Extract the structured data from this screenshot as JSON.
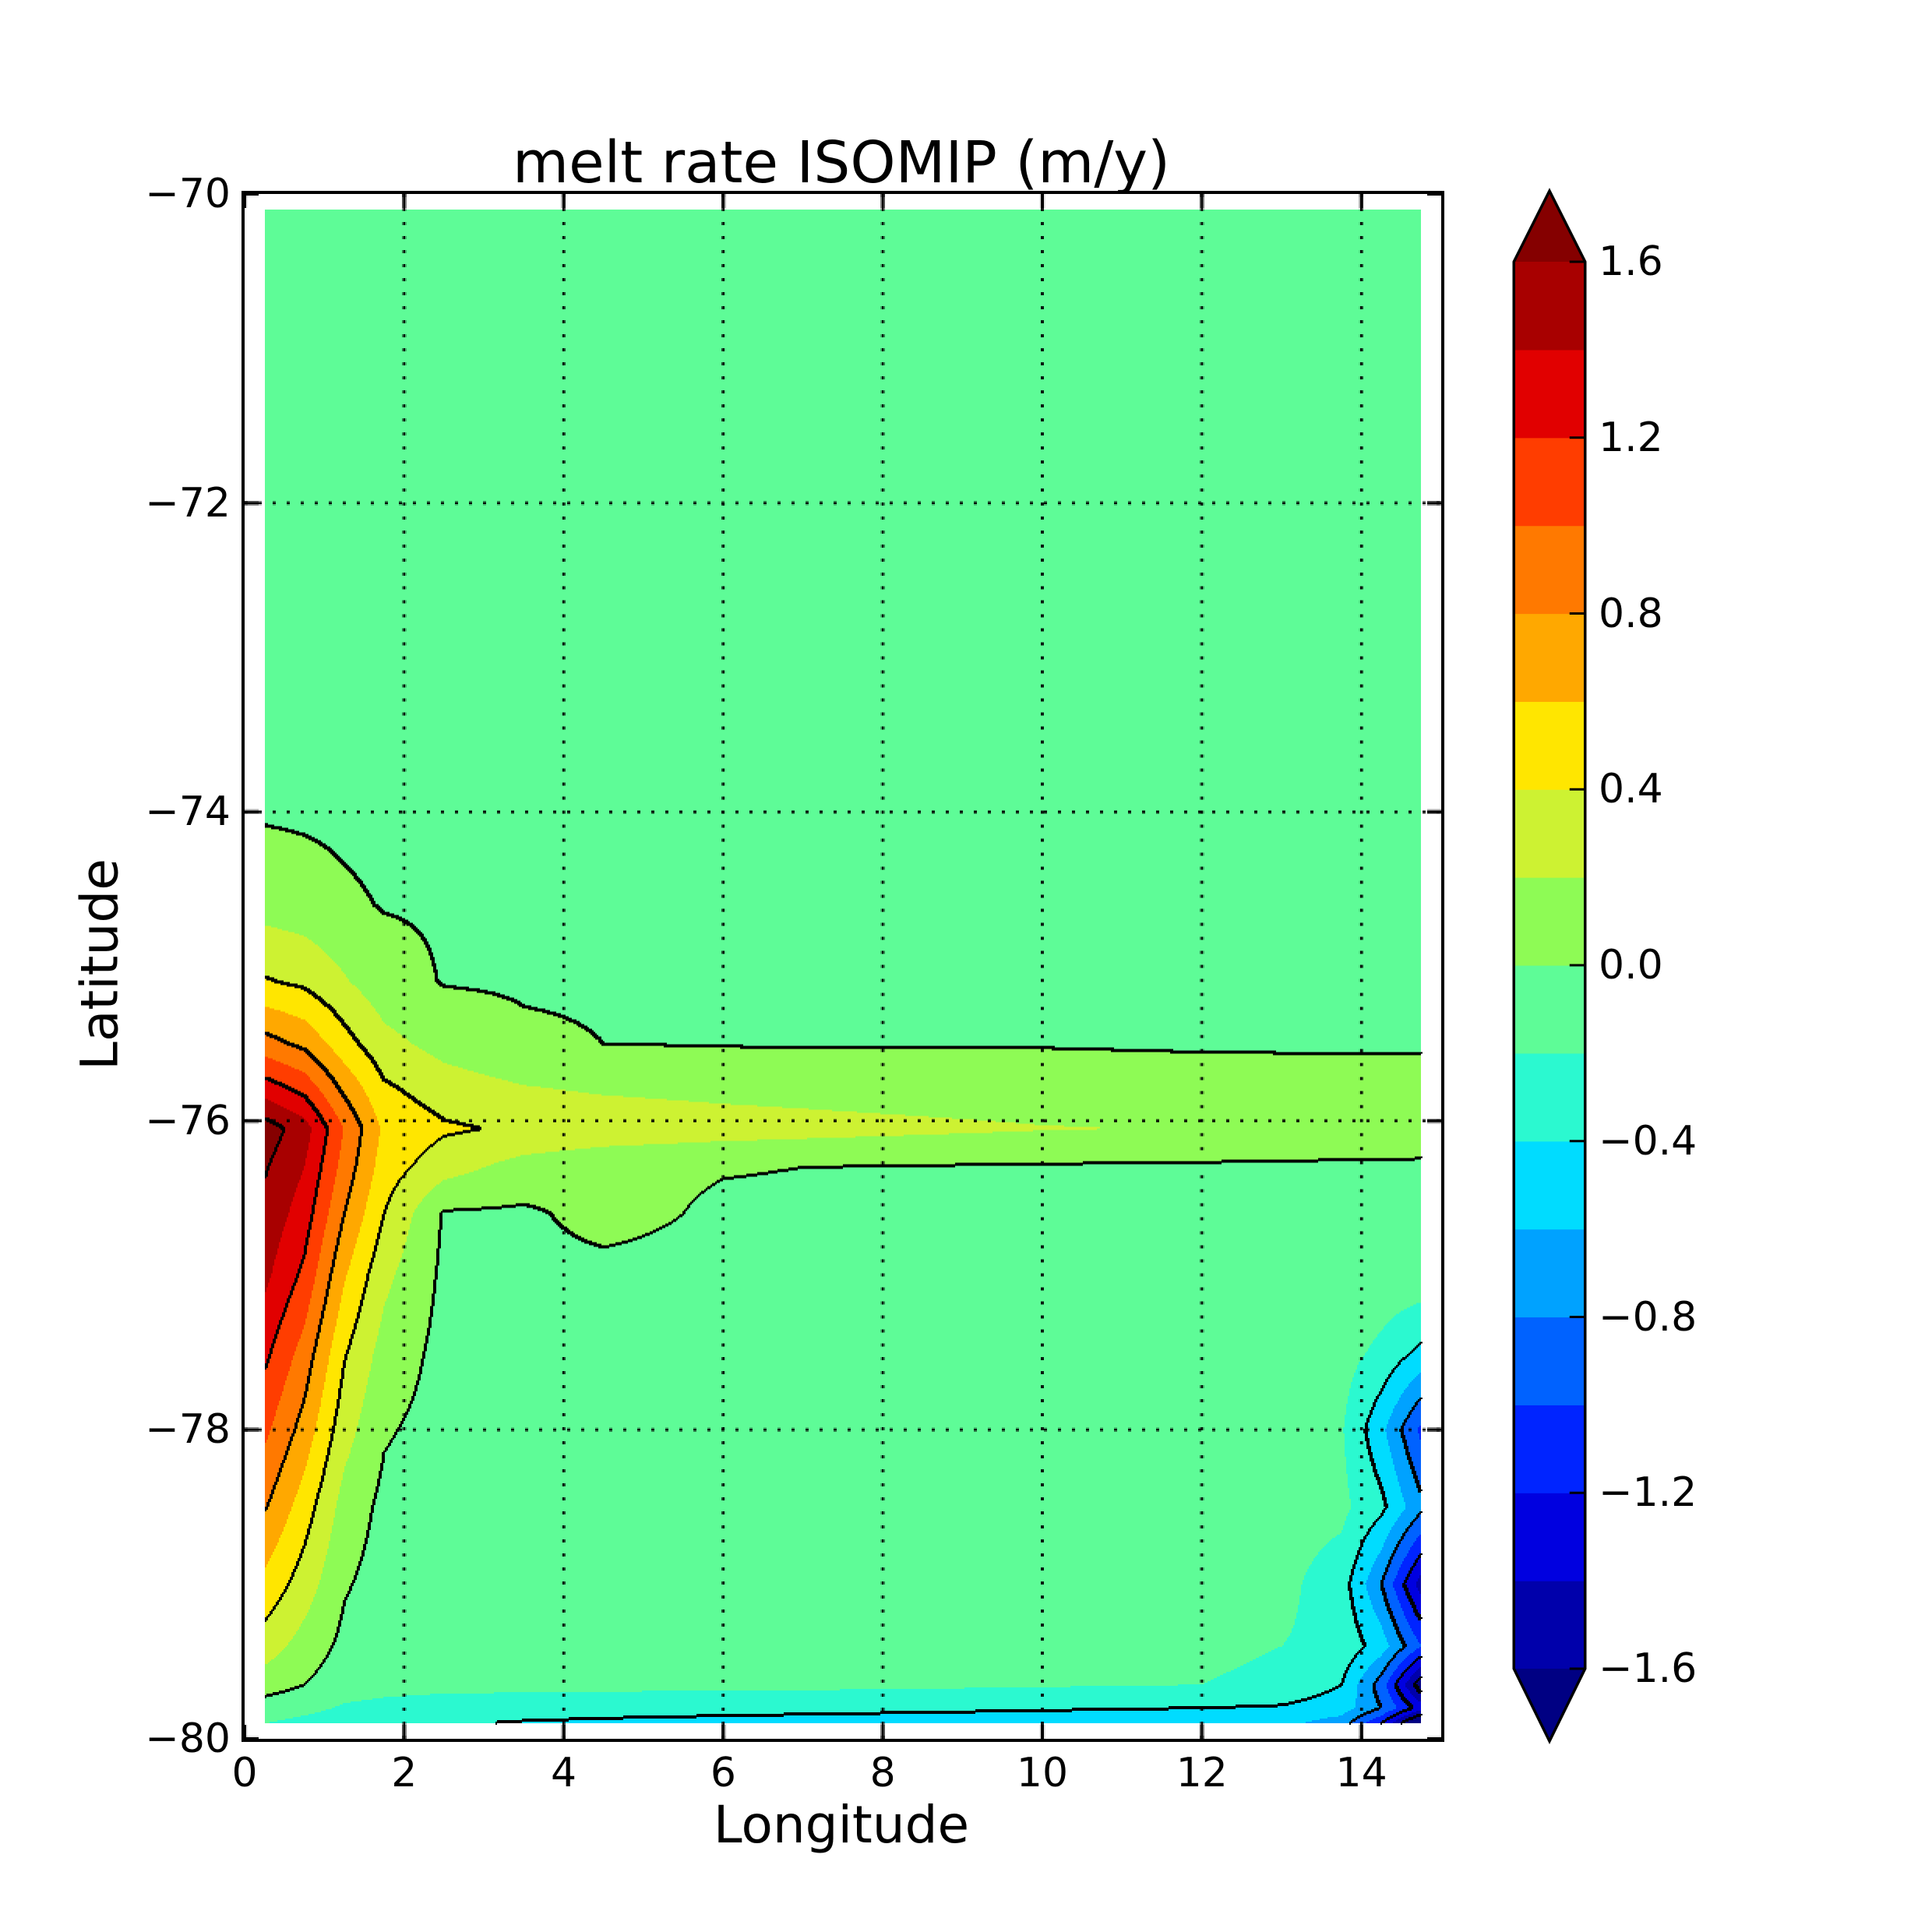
{
  "chart_data": {
    "type": "heatmap",
    "subtype": "filled_contour",
    "title": "melt rate ISOMIP (m/y)",
    "xlabel": "Longitude",
    "ylabel": "Latitude",
    "units": "m/y",
    "xlim": [
      0,
      15
    ],
    "ylim": [
      -80,
      -70
    ],
    "grid": true,
    "x_ticks": [
      0,
      2,
      4,
      6,
      8,
      10,
      12,
      14
    ],
    "x_tick_labels": [
      "0",
      "2",
      "4",
      "6",
      "8",
      "10",
      "12",
      "14"
    ],
    "y_ticks": [
      -70,
      -72,
      -74,
      -76,
      -78,
      -80
    ],
    "y_tick_labels": [
      "−70",
      "−72",
      "−74",
      "−76",
      "−78",
      "−80"
    ],
    "band_levels_min": -1.6,
    "band_levels_max": 1.6,
    "band_step": 0.2,
    "contour_line_levels": [
      -1.6,
      -1.2,
      -0.8,
      -0.4,
      0.0,
      0.4,
      0.8,
      1.2,
      1.6
    ],
    "band_colors": [
      "#0000ab",
      "#0000e0",
      "#0024ff",
      "#0062ff",
      "#00a2ff",
      "#00dcff",
      "#2bf9d0",
      "#5efc97",
      "#8efb55",
      "#cdf232",
      "#ffe600",
      "#ffa800",
      "#ff7900",
      "#ff3d00",
      "#e10000",
      "#a80000"
    ],
    "color_under": "#000083",
    "color_over": "#850000",
    "colorbar": {
      "extend": "both",
      "tick_values": [
        1.6,
        1.2,
        0.8,
        0.4,
        0.0,
        -0.4,
        -0.8,
        -1.2,
        -1.6
      ],
      "tick_labels": [
        "1.6",
        "1.2",
        "0.8",
        "0.4",
        "0.0",
        "−0.4",
        "−0.8",
        "−1.2",
        "−1.6"
      ]
    },
    "field": {
      "lon": [
        0.25,
        0.75,
        1.25,
        1.75,
        2.5,
        3.5,
        4.5,
        6,
        8,
        10,
        12,
        13,
        13.75,
        14.25,
        14.75
      ],
      "lat": [
        -70.1,
        -71,
        -72,
        -73,
        -74,
        -74.6,
        -75.1,
        -75.5,
        -75.8,
        -76.05,
        -76.3,
        -76.6,
        -77,
        -77.5,
        -78,
        -78.5,
        -79,
        -79.4,
        -79.65,
        -79.8,
        -79.9
      ],
      "values": [
        [
          -0.06,
          -0.06,
          -0.06,
          -0.06,
          -0.06,
          -0.06,
          -0.06,
          -0.06,
          -0.06,
          -0.06,
          -0.06,
          -0.06,
          -0.06,
          -0.06,
          -0.06
        ],
        [
          -0.06,
          -0.06,
          -0.06,
          -0.06,
          -0.06,
          -0.06,
          -0.06,
          -0.06,
          -0.06,
          -0.06,
          -0.06,
          -0.06,
          -0.06,
          -0.06,
          -0.06
        ],
        [
          -0.06,
          -0.06,
          -0.06,
          -0.06,
          -0.06,
          -0.06,
          -0.06,
          -0.06,
          -0.06,
          -0.06,
          -0.06,
          -0.06,
          -0.06,
          -0.06,
          -0.06
        ],
        [
          -0.06,
          -0.06,
          -0.06,
          -0.06,
          -0.06,
          -0.06,
          -0.06,
          -0.06,
          -0.06,
          -0.06,
          -0.06,
          -0.06,
          -0.06,
          -0.06,
          -0.06
        ],
        [
          -0.02,
          -0.03,
          -0.04,
          -0.05,
          -0.05,
          -0.06,
          -0.06,
          -0.06,
          -0.06,
          -0.06,
          -0.06,
          -0.06,
          -0.06,
          -0.06,
          -0.06
        ],
        [
          0.12,
          0.09,
          0.03,
          -0.01,
          -0.02,
          -0.03,
          -0.04,
          -0.04,
          -0.05,
          -0.05,
          -0.05,
          -0.05,
          -0.05,
          -0.05,
          -0.05
        ],
        [
          0.42,
          0.36,
          0.22,
          0.08,
          -0.01,
          -0.02,
          -0.02,
          -0.03,
          -0.03,
          -0.03,
          -0.03,
          -0.03,
          -0.03,
          -0.03,
          -0.03
        ],
        [
          0.88,
          0.75,
          0.48,
          0.26,
          0.13,
          0.03,
          0.0,
          -0.01,
          -0.01,
          -0.01,
          -0.02,
          -0.02,
          -0.02,
          -0.02,
          -0.02
        ],
        [
          1.32,
          1.15,
          0.76,
          0.44,
          0.3,
          0.22,
          0.18,
          0.15,
          0.12,
          0.1,
          0.09,
          0.08,
          0.08,
          0.07,
          0.07
        ],
        [
          1.71,
          1.49,
          0.99,
          0.56,
          0.43,
          0.37,
          0.33,
          0.29,
          0.25,
          0.21,
          0.19,
          0.17,
          0.16,
          0.15,
          0.14
        ],
        [
          1.62,
          1.4,
          0.92,
          0.5,
          0.28,
          0.12,
          0.05,
          0.01,
          -0.01,
          -0.02,
          -0.03,
          -0.03,
          -0.04,
          -0.04,
          -0.04
        ],
        [
          1.55,
          1.3,
          0.8,
          0.4,
          -0.02,
          -0.03,
          0.06,
          -0.03,
          -0.04,
          -0.05,
          -0.05,
          -0.05,
          -0.06,
          -0.06,
          -0.06
        ],
        [
          1.45,
          1.15,
          0.62,
          0.25,
          -0.04,
          -0.05,
          -0.05,
          -0.06,
          -0.06,
          -0.06,
          -0.06,
          -0.06,
          -0.07,
          -0.07,
          -0.07
        ],
        [
          1.25,
          0.92,
          0.42,
          0.12,
          -0.06,
          -0.06,
          -0.06,
          -0.06,
          -0.06,
          -0.07,
          -0.07,
          -0.08,
          -0.12,
          -0.25,
          -0.45
        ],
        [
          1.05,
          0.72,
          0.28,
          0.02,
          -0.07,
          -0.07,
          -0.07,
          -0.07,
          -0.07,
          -0.07,
          -0.08,
          -0.1,
          -0.18,
          -0.55,
          -1.05
        ],
        [
          0.82,
          0.5,
          0.12,
          -0.05,
          -0.08,
          -0.08,
          -0.08,
          -0.08,
          -0.08,
          -0.08,
          -0.09,
          -0.12,
          -0.15,
          -0.35,
          -0.75
        ],
        [
          0.55,
          0.3,
          0.02,
          -0.08,
          -0.09,
          -0.09,
          -0.09,
          -0.09,
          -0.09,
          -0.1,
          -0.12,
          -0.15,
          -0.3,
          -0.8,
          -1.5
        ],
        [
          0.3,
          0.12,
          -0.05,
          -0.1,
          -0.1,
          -0.1,
          -0.1,
          -0.1,
          -0.1,
          -0.12,
          -0.15,
          -0.2,
          -0.25,
          -0.5,
          -1.0
        ],
        [
          0.1,
          0.0,
          -0.12,
          -0.14,
          -0.15,
          -0.15,
          -0.15,
          -0.15,
          -0.16,
          -0.18,
          -0.2,
          -0.25,
          -0.4,
          -0.9,
          -1.75
        ],
        [
          -0.1,
          -0.15,
          -0.22,
          -0.25,
          -0.28,
          -0.3,
          -0.32,
          -0.34,
          -0.36,
          -0.38,
          -0.4,
          -0.42,
          -0.5,
          -0.8,
          -1.3
        ],
        [
          -0.2,
          -0.25,
          -0.3,
          -0.35,
          -0.38,
          -0.42,
          -0.44,
          -0.46,
          -0.48,
          -0.5,
          -0.52,
          -0.55,
          -0.7,
          -1.2,
          -2.0
        ]
      ]
    }
  }
}
